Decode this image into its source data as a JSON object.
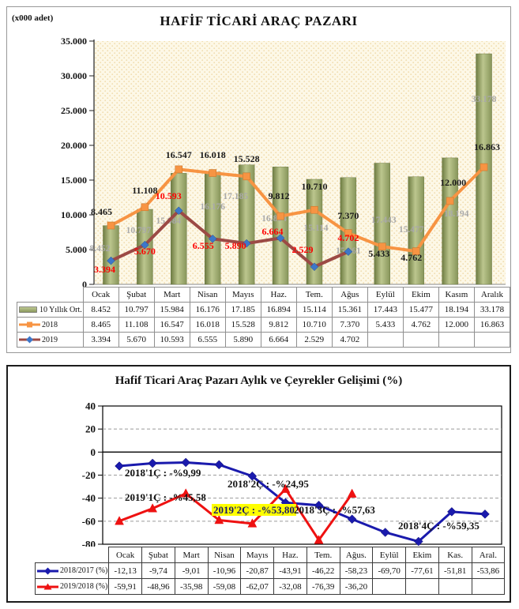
{
  "chart_data": [
    {
      "type": "combo-bar-line",
      "title": "HAFİF TİCARİ ARAÇ PAZARI",
      "unit_label": "(x000 adet)",
      "categories": [
        "Ocak",
        "Şubat",
        "Mart",
        "Nisan",
        "Mayıs",
        "Haz.",
        "Tem.",
        "Ağus",
        "Eylül",
        "Ekim",
        "Kasım",
        "Aralık"
      ],
      "ylim": [
        0,
        35000
      ],
      "y_tick_labels": [
        "35.000",
        "30.000",
        "25.000",
        "20.000",
        "15.000",
        "10.000",
        "5.000",
        "0"
      ],
      "grid": false,
      "legend_position": "table-left",
      "series": [
        {
          "name": "10 Yıllık Ort.",
          "type": "bar",
          "color": "#93A161",
          "label_color": "#A9A9A9",
          "values": [
            8452,
            10797,
            15984,
            16176,
            17185,
            16894,
            15114,
            15361,
            17443,
            15477,
            18194,
            33178
          ],
          "labels": [
            "8.452",
            "10.797",
            "15.984",
            "16.176",
            "17.185",
            "16.894",
            "15.114",
            "15.361",
            "17.443",
            "15.477",
            "18.194",
            "33.178"
          ]
        },
        {
          "name": "2018",
          "type": "line",
          "marker": "square",
          "color": "#F79443",
          "marker_color": "#F79443",
          "label_color": "#1A1A1A",
          "values": [
            8465,
            11108,
            16547,
            16018,
            15528,
            9812,
            10710,
            7370,
            5433,
            4762,
            12000,
            16863
          ],
          "labels": [
            "8.465",
            "11.108",
            "16.547",
            "16.018",
            "15.528",
            "9.812",
            "10.710",
            "7.370",
            "5.433",
            "4.762",
            "12.000",
            "16.863"
          ]
        },
        {
          "name": "2019",
          "type": "line",
          "marker": "diamond",
          "color": "#9C4A45",
          "marker_color": "#3D77C9",
          "label_color": "#FE0000",
          "values": [
            3394,
            5670,
            10593,
            6555,
            5890,
            6664,
            2529,
            4702
          ],
          "labels": [
            "3.394",
            "5.670",
            "10.593",
            "6.555",
            "5.890",
            "6.664",
            "2.529",
            "4.702"
          ]
        }
      ],
      "bar_gradient": [
        "#6E7C42",
        "#BCC68E",
        "#87955A"
      ],
      "plot_bg": "#FDF8E7",
      "plot_dot_color": "#F0DCAE"
    },
    {
      "type": "line",
      "title": "Hafif Ticari Araç Pazarı Aylık ve Çeyrekler Gelişimi (%)",
      "categories": [
        "Ocak",
        "Şubat",
        "Mart",
        "Nisan",
        "Mayıs",
        "Haz.",
        "Tem.",
        "Ağus.",
        "Eylül",
        "Ekim",
        "Kas.",
        "Aral."
      ],
      "ylim": [
        -80,
        40
      ],
      "y_tick_labels": [
        "40",
        "20",
        "0",
        "-20",
        "-40",
        "-60",
        "-80"
      ],
      "grid": "dashed-horizontal",
      "legend_position": "table-left",
      "series": [
        {
          "name": "2018/2017 (%)",
          "marker": "diamond",
          "color": "#1A1AAD",
          "values": [
            -12.13,
            -9.74,
            -9.01,
            -10.96,
            -20.87,
            -43.91,
            -46.22,
            -58.23,
            -69.7,
            -77.61,
            -51.81,
            -53.86
          ],
          "labels": [
            "-12,13",
            "-9,74",
            "-9,01",
            "-10,96",
            "-20,87",
            "-43,91",
            "-46,22",
            "-58,23",
            "-69,70",
            "-77,61",
            "-51,81",
            "-53,86"
          ]
        },
        {
          "name": "2019/2018 (%)",
          "marker": "triangle",
          "color": "#EE1111",
          "values": [
            -59.91,
            -48.96,
            -35.98,
            -59.08,
            -62.07,
            -32.08,
            -76.39,
            -36.2
          ],
          "labels": [
            "-59,91",
            "-48,96",
            "-35,98",
            "-59,08",
            "-62,07",
            "-32,08",
            "-76,39",
            "-36,20"
          ]
        }
      ],
      "annotations": [
        {
          "text": "2018'1Ç : -%9,99",
          "highlight": false
        },
        {
          "text": "2019'1Ç : -%45,58",
          "highlight": false
        },
        {
          "text": "2018'2Ç : -%24,95",
          "highlight": false
        },
        {
          "text": "2019'2Ç : -%53,80",
          "highlight": true
        },
        {
          "text": "2018'3Ç : -%57,63",
          "highlight": false
        },
        {
          "text": "2018'4Ç : -%59,35",
          "highlight": false
        }
      ]
    }
  ]
}
